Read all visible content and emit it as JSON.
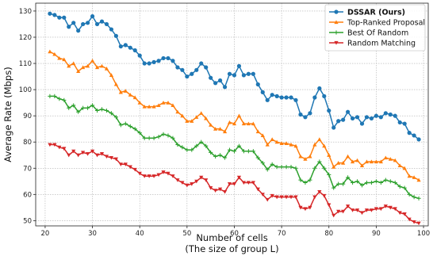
{
  "chart_data": {
    "type": "line",
    "xlabel": [
      "Number of cells",
      "(The size of group L)"
    ],
    "ylabel": "Average Rate (Mbps)",
    "xlim": [
      18,
      101
    ],
    "ylim": [
      48,
      133
    ],
    "xticks": [
      20,
      30,
      40,
      50,
      60,
      70,
      80,
      90,
      100
    ],
    "yticks": [
      50,
      60,
      70,
      80,
      90,
      100,
      110,
      120,
      130
    ],
    "grid": true,
    "legend_position": "top-right",
    "x": [
      21,
      22,
      23,
      24,
      25,
      26,
      27,
      28,
      29,
      30,
      31,
      32,
      33,
      34,
      35,
      36,
      37,
      38,
      39,
      40,
      41,
      42,
      43,
      44,
      45,
      46,
      47,
      48,
      49,
      50,
      51,
      52,
      53,
      54,
      55,
      56,
      57,
      58,
      59,
      60,
      61,
      62,
      63,
      64,
      65,
      66,
      67,
      68,
      69,
      70,
      71,
      72,
      73,
      74,
      75,
      76,
      77,
      78,
      79,
      80,
      81,
      82,
      83,
      84,
      85,
      86,
      87,
      88,
      89,
      90,
      91,
      92,
      93,
      94,
      95,
      96,
      97,
      98,
      99
    ],
    "series": [
      {
        "name": "DSSAR (Ours)",
        "bold": true,
        "color": "#1f77b4",
        "marker": "circle",
        "values": [
          129,
          128.5,
          127.5,
          127.5,
          124,
          125.5,
          122.5,
          125,
          125.5,
          128,
          125,
          126,
          125,
          123,
          120.5,
          116.5,
          117,
          116,
          115,
          113,
          110,
          110,
          110.5,
          111,
          112,
          112,
          111,
          108.5,
          107.5,
          105,
          106,
          107.5,
          110,
          108.5,
          104.5,
          102.5,
          103.5,
          101,
          106,
          105.5,
          109,
          105.5,
          106,
          106,
          102,
          99,
          96,
          98,
          97.5,
          97,
          97,
          97,
          96,
          90.5,
          89.5,
          91,
          97,
          100.5,
          97.5,
          92,
          85.5,
          88,
          88.5,
          91.5,
          89,
          89.5,
          87,
          89.5,
          89,
          90,
          89.5,
          91,
          90.5,
          90,
          87.5,
          87,
          83.5,
          82.5,
          81
        ]
      },
      {
        "name": "Top-Ranked Proposal",
        "bold": false,
        "color": "#ff7f0e",
        "marker": "triangle",
        "values": [
          114.5,
          113.5,
          112,
          111.5,
          109,
          110,
          107,
          108.5,
          109,
          111,
          108.5,
          109,
          108,
          105.5,
          102,
          99,
          99.5,
          98,
          97,
          95,
          93.5,
          93.5,
          93.5,
          94,
          95,
          95,
          94,
          91.5,
          90,
          88,
          88,
          89.5,
          91,
          89,
          86.5,
          85,
          85,
          84,
          87.5,
          87,
          90,
          87,
          87,
          87,
          84,
          82.5,
          79,
          81,
          80,
          79.5,
          79.5,
          79,
          78.5,
          74.5,
          73.5,
          74.5,
          79,
          81,
          78.5,
          75,
          70.5,
          72,
          72,
          74.5,
          72.5,
          73,
          71,
          72.5,
          72.5,
          72.5,
          72.5,
          74,
          73.5,
          73,
          71,
          70,
          67,
          66.5,
          65.5
        ]
      },
      {
        "name": "Best Of Random",
        "bold": false,
        "color": "#2ca02c",
        "marker": "plus",
        "values": [
          97.5,
          97.5,
          96.5,
          96,
          93,
          94,
          91.5,
          93,
          93,
          94,
          92,
          92.5,
          92,
          91,
          89.5,
          86.5,
          87,
          86,
          85,
          83.5,
          81.5,
          81.5,
          81.5,
          82,
          83,
          82.5,
          81.5,
          79,
          78,
          77,
          77,
          78.5,
          80,
          78.5,
          76,
          74.5,
          75,
          74,
          77,
          76.5,
          78.5,
          76.5,
          76.5,
          76.5,
          74,
          72,
          69.5,
          71.5,
          70.5,
          70.5,
          70.5,
          70.5,
          70,
          65.5,
          64.5,
          65.5,
          70,
          72.5,
          70,
          67.5,
          62.5,
          64,
          64,
          66.5,
          64.5,
          65,
          63.5,
          64.5,
          64.5,
          65,
          64.5,
          65.5,
          65,
          64.5,
          63,
          62.5,
          60,
          59,
          58.5
        ]
      },
      {
        "name": "Random Matching",
        "bold": false,
        "color": "#d62728",
        "marker": "triangle-down",
        "values": [
          79,
          79,
          78,
          77.5,
          75,
          76.5,
          75,
          76,
          75.5,
          76.5,
          75,
          75.5,
          74.5,
          74,
          73.5,
          71.5,
          71.5,
          70.5,
          69.5,
          68,
          67,
          67,
          67,
          67.5,
          68.5,
          68,
          67,
          65.5,
          64.5,
          63.5,
          64,
          65,
          66.5,
          65.5,
          62.5,
          61.5,
          62,
          61,
          64,
          64,
          66.5,
          64.5,
          64.5,
          64.5,
          62,
          60,
          58,
          59.5,
          59,
          59,
          59,
          59,
          59,
          55,
          54.5,
          55,
          59,
          61,
          59.5,
          56,
          52,
          53.5,
          53.5,
          55.5,
          54,
          54,
          53,
          54,
          54,
          54.5,
          54.5,
          55.5,
          55,
          54.5,
          53,
          52.5,
          50.5,
          49.5,
          49
        ]
      }
    ]
  }
}
